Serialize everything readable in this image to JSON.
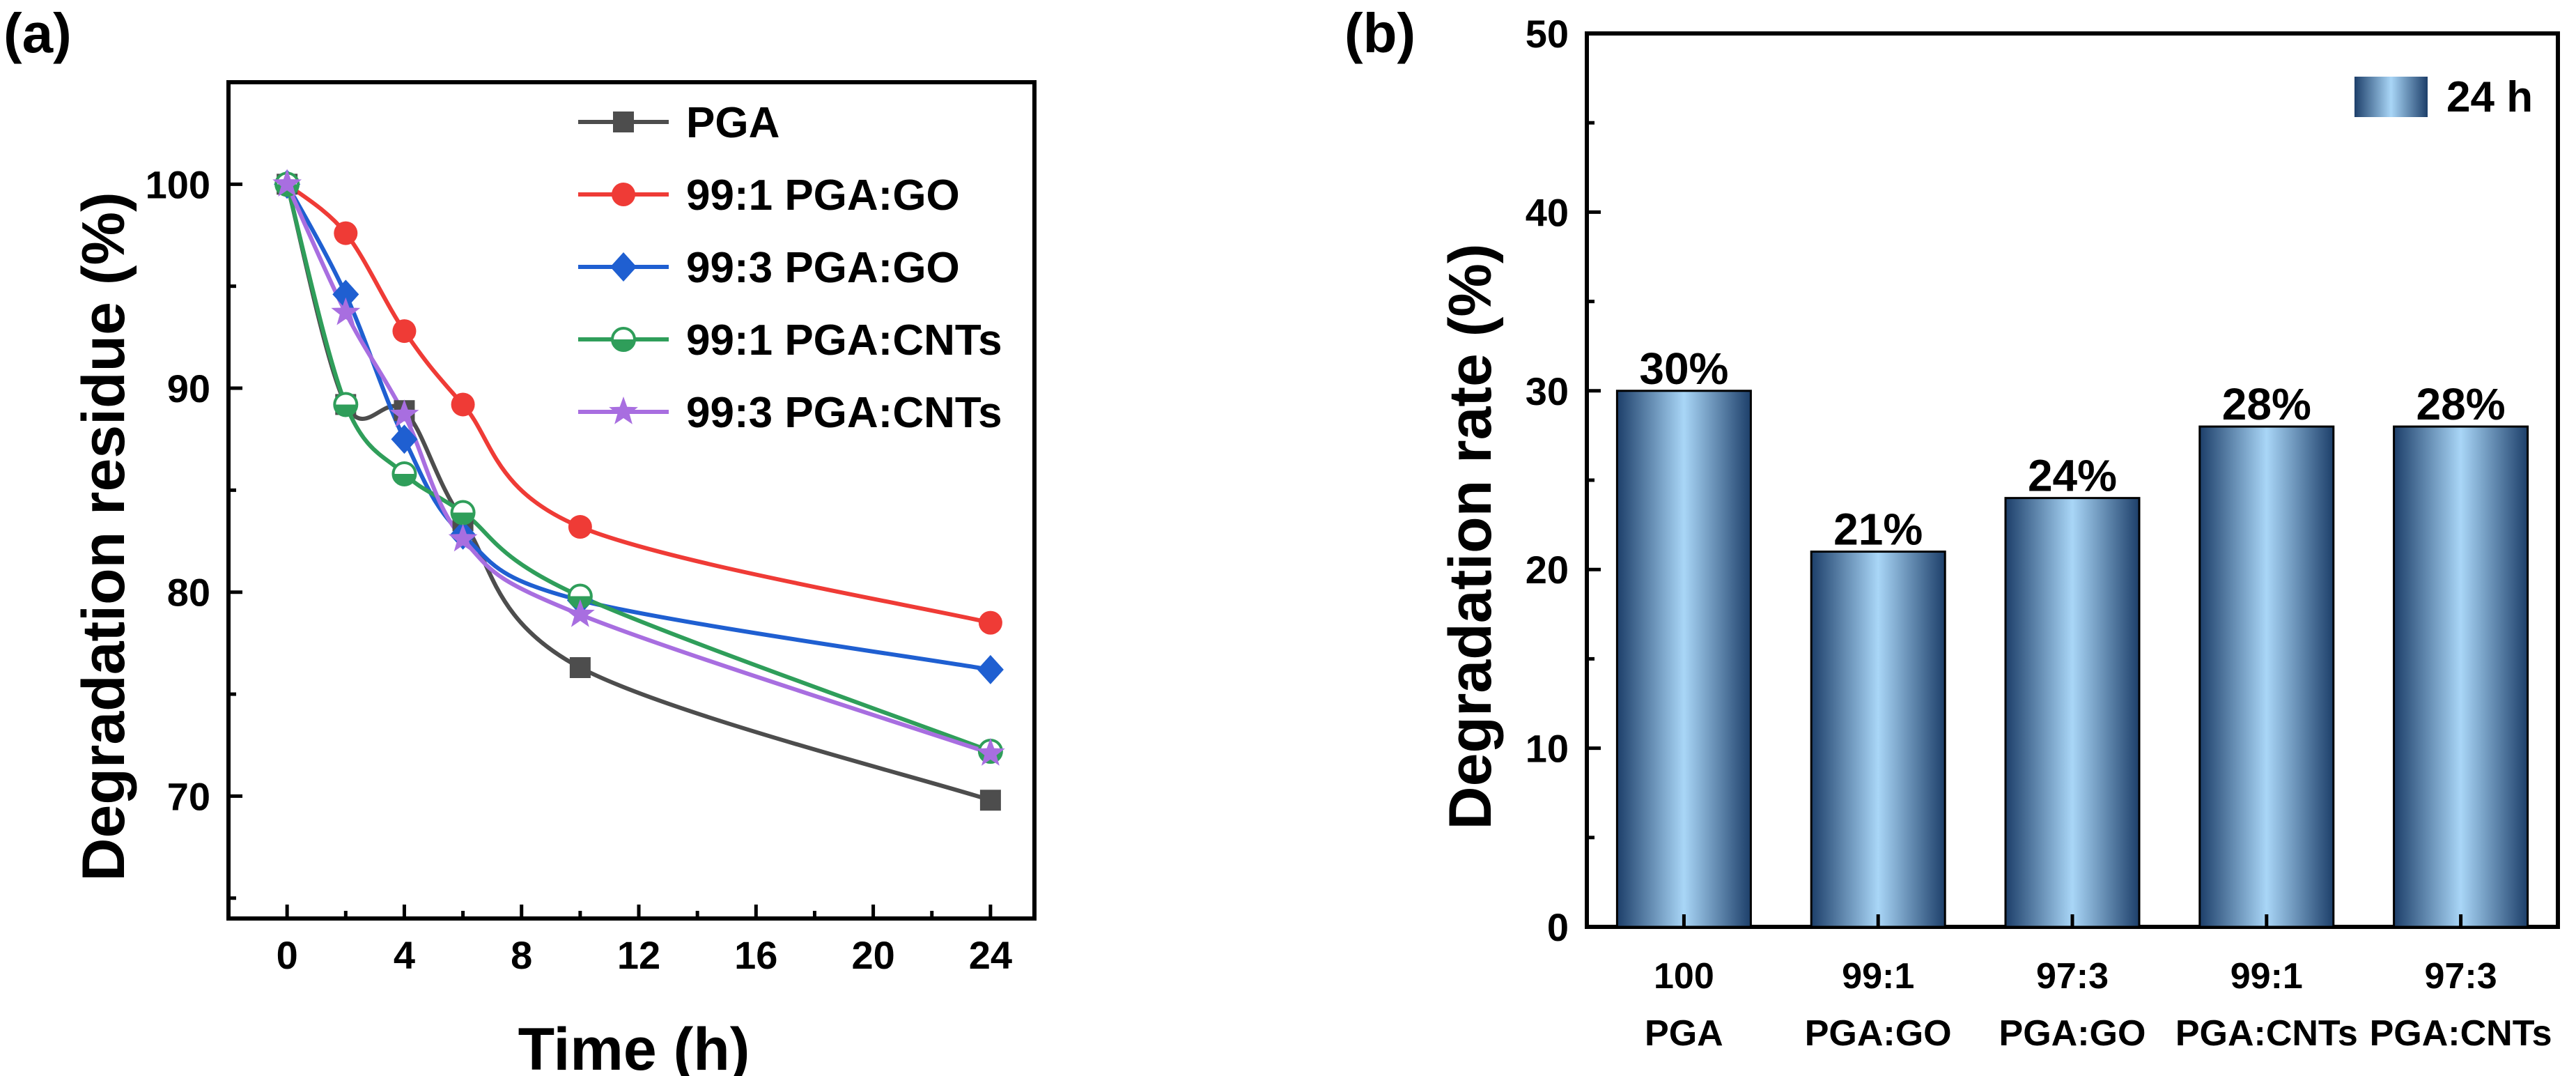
{
  "colors": {
    "PGA": "#4d4d4d",
    "PGA_GO_1": "#ef3b36",
    "PGA_GO_3": "#1f5fd1",
    "PGA_CNT_1": "#2f9e5a",
    "PGA_CNT_3": "#a86ee0",
    "bar_edge": "#1d3f6a",
    "bar_center": "#a9d6f7"
  },
  "chart_data": [
    {
      "panel": "(a)",
      "type": "line",
      "xlabel": "Time (h)",
      "ylabel": "Degradation residue (%)",
      "xlim": [
        -2,
        25.5
      ],
      "ylim": [
        64,
        105
      ],
      "xticks": [
        0,
        4,
        8,
        12,
        16,
        20,
        24
      ],
      "yticks": [
        70,
        80,
        90,
        100
      ],
      "legend_position": "top-right",
      "series": [
        {
          "name": "PGA",
          "marker": "square",
          "color_key": "PGA",
          "x": [
            0,
            2,
            4,
            6,
            10,
            24
          ],
          "y": [
            100,
            89.2,
            88.9,
            83.5,
            76.3,
            69.8
          ]
        },
        {
          "name": "99:1 PGA:GO",
          "marker": "circle",
          "color_key": "PGA_GO_1",
          "x": [
            0,
            2,
            4,
            6,
            10,
            24
          ],
          "y": [
            100,
            97.6,
            92.8,
            89.2,
            83.2,
            78.5
          ]
        },
        {
          "name": "99:3 PGA:GO",
          "marker": "diamond",
          "color_key": "PGA_GO_3",
          "x": [
            0,
            2,
            4,
            6,
            10,
            24
          ],
          "y": [
            100,
            94.6,
            87.5,
            82.8,
            79.6,
            76.2
          ]
        },
        {
          "name": "99:1 PGA:CNTs",
          "marker": "half-circle",
          "color_key": "PGA_CNT_1",
          "x": [
            0,
            2,
            4,
            6,
            10,
            24
          ],
          "y": [
            100,
            89.2,
            85.8,
            83.9,
            79.8,
            72.2
          ]
        },
        {
          "name": "99:3 PGA:CNTs",
          "marker": "star",
          "color_key": "PGA_CNT_3",
          "x": [
            0,
            2,
            4,
            6,
            10,
            24
          ],
          "y": [
            100,
            93.7,
            88.7,
            82.6,
            78.9,
            72.1
          ]
        }
      ]
    },
    {
      "panel": "(b)",
      "type": "bar",
      "ylabel": "Degradation rate (%)",
      "ylim": [
        0,
        50
      ],
      "yticks": [
        0,
        10,
        20,
        30,
        40,
        50
      ],
      "legend": "24 h",
      "legend_position": "top-right",
      "categories": [
        {
          "line1": "100",
          "line2": "PGA"
        },
        {
          "line1": "99:1",
          "line2": "PGA:GO"
        },
        {
          "line1": "97:3",
          "line2": "PGA:GO"
        },
        {
          "line1": "99:1",
          "line2": "PGA:CNTs"
        },
        {
          "line1": "97:3",
          "line2": "PGA:CNTs"
        }
      ],
      "values": [
        30,
        21,
        24,
        28,
        28
      ],
      "value_labels": [
        "30%",
        "21%",
        "24%",
        "28%",
        "28%"
      ]
    }
  ]
}
